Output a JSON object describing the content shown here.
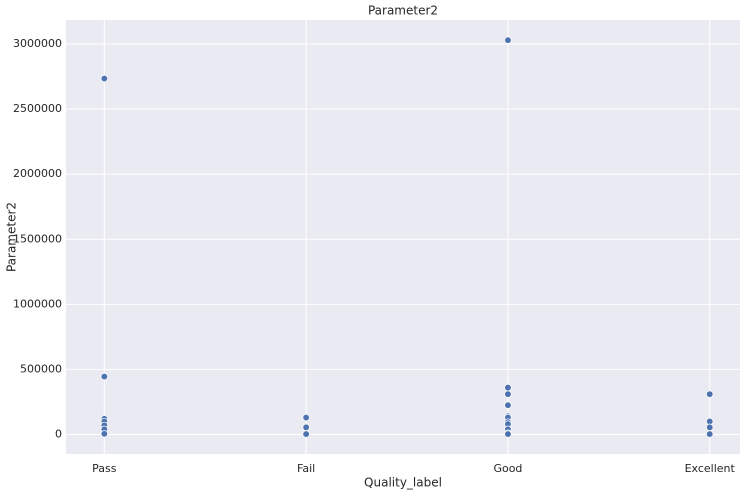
{
  "chart_data": {
    "type": "scatter",
    "title": "Parameter2",
    "x_label": "Quality_label",
    "y_label": "Parameter2",
    "categories": [
      "Pass",
      "Fail",
      "Good",
      "Excellent"
    ],
    "values": [
      [
        2735000,
        445000,
        120000,
        100000,
        70000,
        40000,
        5000
      ],
      [
        130000,
        55000,
        3000
      ],
      [
        3030000,
        360000,
        310000,
        225000,
        140000,
        130000,
        95000,
        80000,
        40000,
        10000,
        3000
      ],
      [
        310000,
        100000,
        55000,
        3000
      ]
    ],
    "color": "#4c72b0",
    "xlim": [
      -0.19,
      3.15
    ],
    "ylim": [
      -150000,
      3185000
    ],
    "yticks": [
      0,
      500000,
      1000000,
      1500000,
      2000000,
      2500000,
      3000000
    ],
    "grid": true
  }
}
